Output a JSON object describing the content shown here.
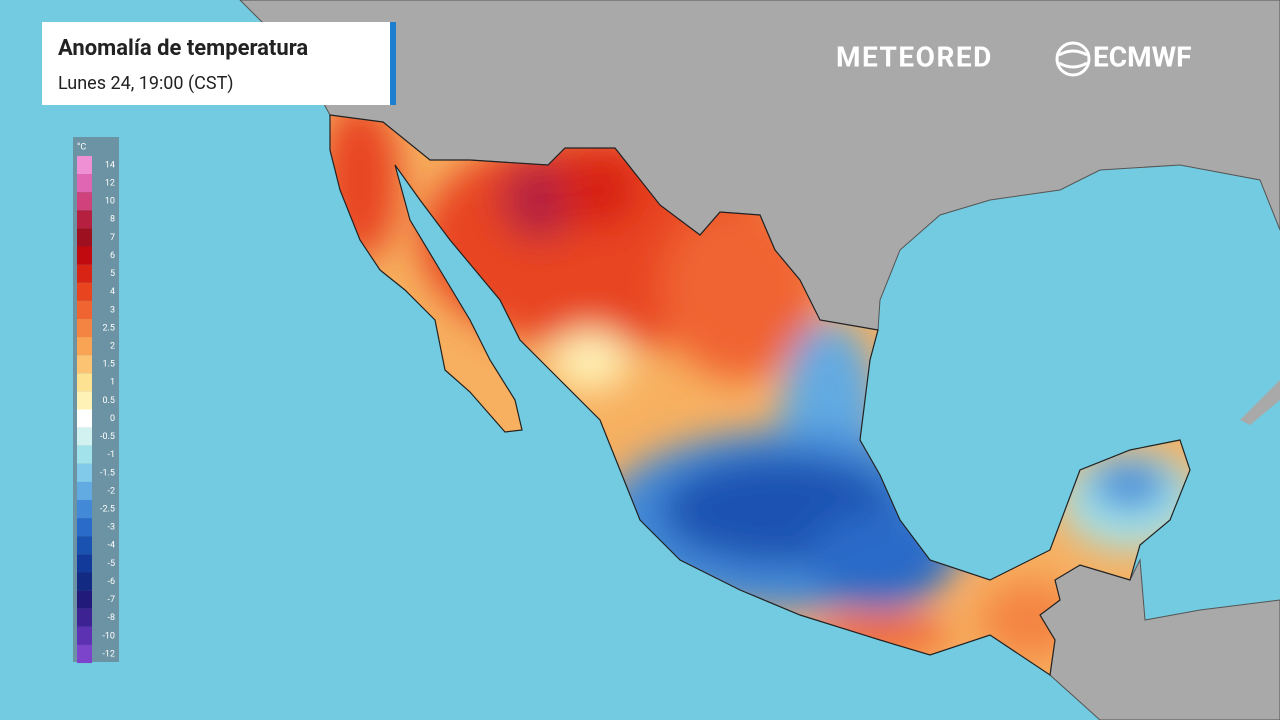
{
  "header": {
    "title": "Anomalía de temperatura",
    "subtitle": "Lunes 24, 19:00 (CST)"
  },
  "logos": {
    "brand": "METEORED",
    "partner": "ECMWF"
  },
  "legend": {
    "unit": "°C",
    "items": [
      {
        "label": "14",
        "color": "#f090d4"
      },
      {
        "label": "12",
        "color": "#e066b4"
      },
      {
        "label": "10",
        "color": "#d0427c"
      },
      {
        "label": "8",
        "color": "#b62040"
      },
      {
        "label": "7",
        "color": "#9c1020"
      },
      {
        "label": "6",
        "color": "#c00a10"
      },
      {
        "label": "5",
        "color": "#d82414"
      },
      {
        "label": "4",
        "color": "#e84420"
      },
      {
        "label": "3",
        "color": "#f06432"
      },
      {
        "label": "2.5",
        "color": "#f48442"
      },
      {
        "label": "2",
        "color": "#f8a454"
      },
      {
        "label": "1.5",
        "color": "#fcc472"
      },
      {
        "label": "1",
        "color": "#fde292"
      },
      {
        "label": "0.5",
        "color": "#fff2b6"
      },
      {
        "label": "0",
        "color": "#ffffff"
      },
      {
        "label": "-0.5",
        "color": "#d2f2f2"
      },
      {
        "label": "-1",
        "color": "#a2e2ea"
      },
      {
        "label": "-1.5",
        "color": "#82caea"
      },
      {
        "label": "-2",
        "color": "#62aae2"
      },
      {
        "label": "-2.5",
        "color": "#428ad8"
      },
      {
        "label": "-3",
        "color": "#2a6ac8"
      },
      {
        "label": "-4",
        "color": "#1a52b2"
      },
      {
        "label": "-5",
        "color": "#123a9a"
      },
      {
        "label": "-6",
        "color": "#122a82"
      },
      {
        "label": "-7",
        "color": "#221a7a"
      },
      {
        "label": "-8",
        "color": "#3c2292"
      },
      {
        "label": "-10",
        "color": "#5c32b2"
      },
      {
        "label": "-12",
        "color": "#7c44ca"
      }
    ]
  }
}
